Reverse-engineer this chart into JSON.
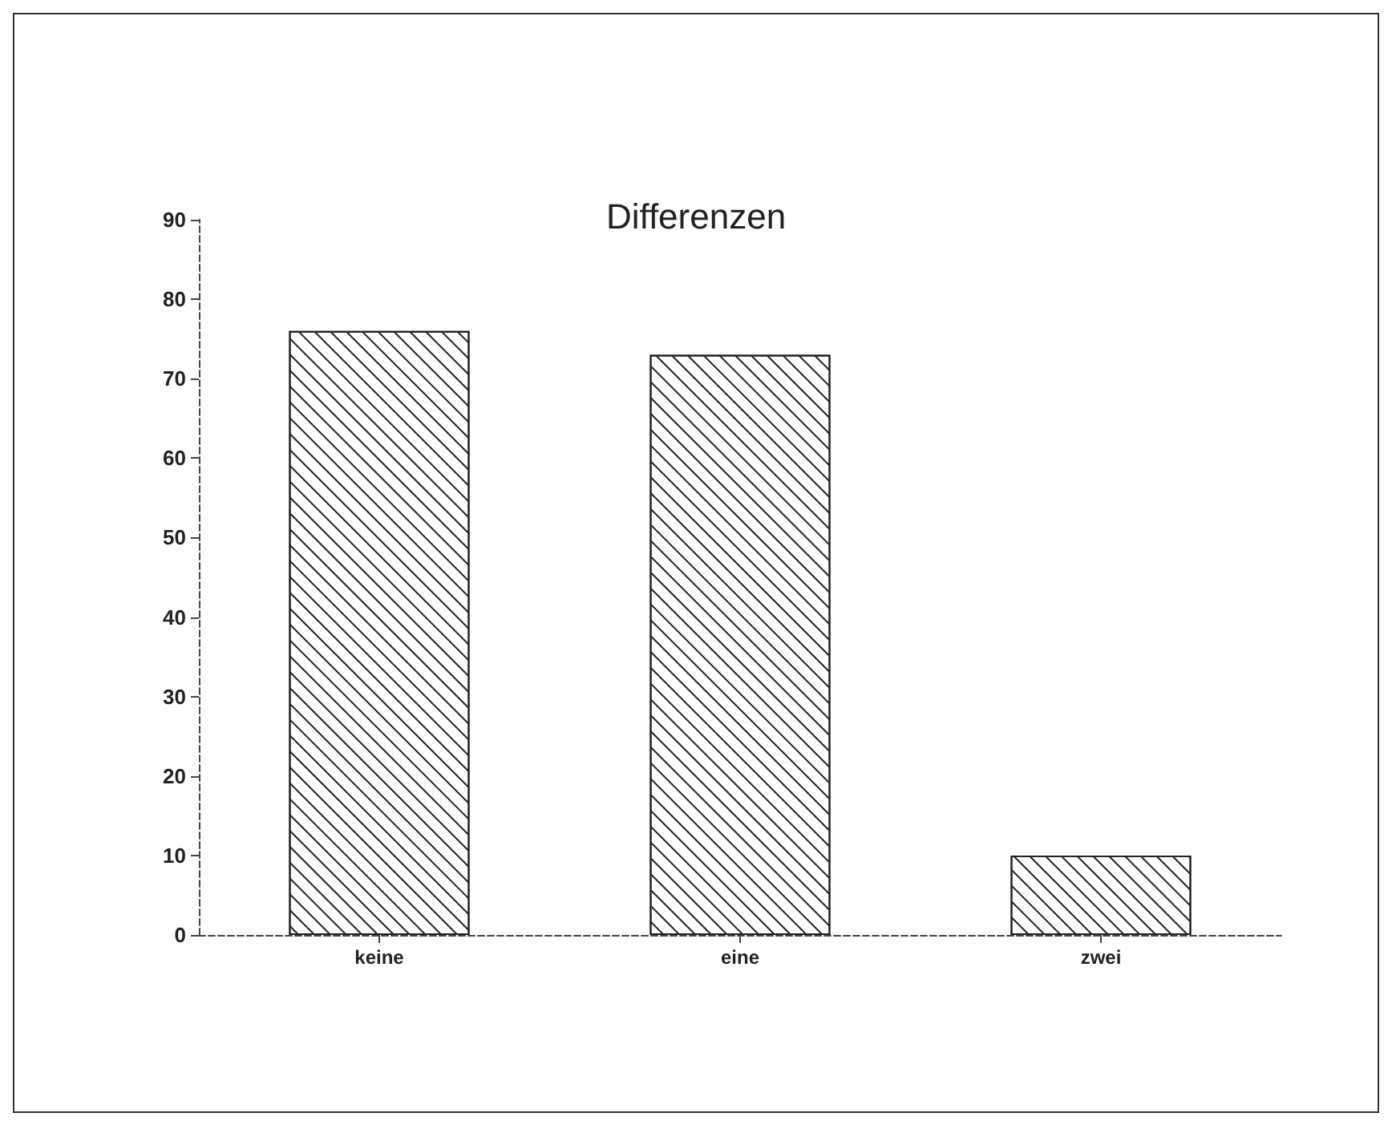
{
  "chart_data": {
    "type": "bar",
    "title": "Differenzen",
    "categories": [
      "keine",
      "eine",
      "zwei"
    ],
    "values": [
      76,
      73,
      10
    ],
    "color": "#222222",
    "ylim": [
      0,
      90
    ],
    "yticks": [
      0,
      10,
      20,
      30,
      40,
      50,
      60,
      70,
      80,
      90
    ],
    "grid": false
  }
}
